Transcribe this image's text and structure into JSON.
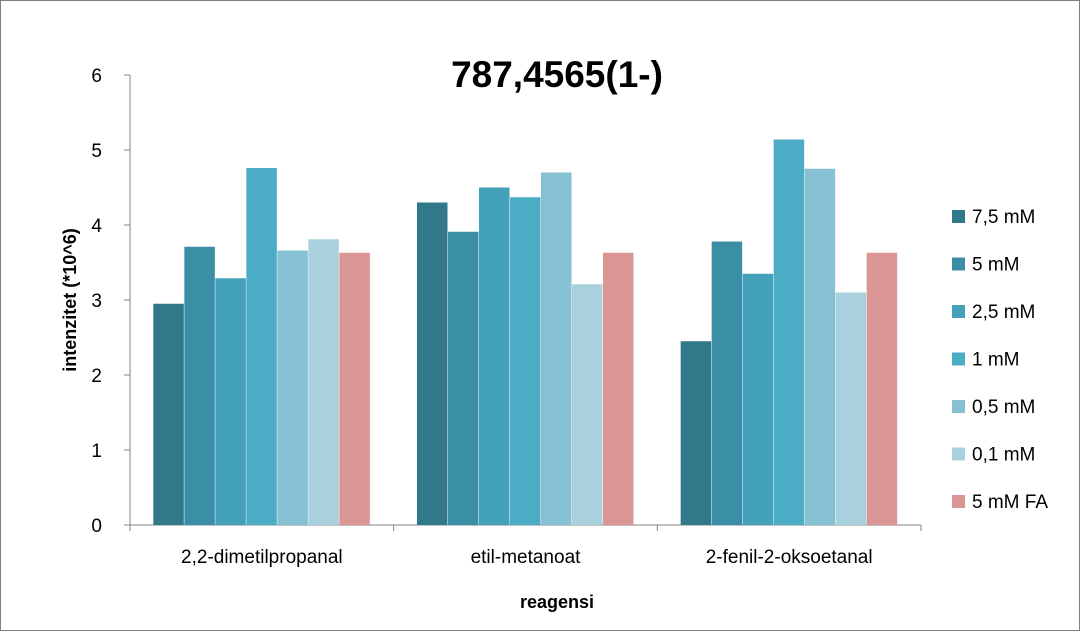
{
  "chart_data": {
    "type": "bar",
    "title": "787,4565(1-)",
    "xlabel": "reagensi",
    "ylabel": "intenzitet (*10^6)",
    "ylim": [
      0,
      6
    ],
    "yticks": [
      "0",
      "1",
      "2",
      "3",
      "4",
      "5",
      "6"
    ],
    "grid": false,
    "legend_position": "right",
    "categories": [
      "2,2-dimetilpropanal",
      "etil-metanoat",
      "2-fenil-2-oksoetanal"
    ],
    "series": [
      {
        "name": "7,5 mM",
        "color": "#31798a",
        "values": [
          2.95,
          4.3,
          2.45
        ]
      },
      {
        "name": "5 mM",
        "color": "#3a8ea5",
        "values": [
          3.71,
          3.91,
          3.78
        ]
      },
      {
        "name": "2,5 mM",
        "color": "#43a1ba",
        "values": [
          3.29,
          4.5,
          3.35
        ]
      },
      {
        "name": "1 mM",
        "color": "#4bacc6",
        "values": [
          4.76,
          4.37,
          5.14
        ]
      },
      {
        "name": "0,5 mM",
        "color": "#86c0d3",
        "values": [
          3.66,
          4.7,
          4.75
        ]
      },
      {
        "name": "0,1 mM",
        "color": "#a9d0dd",
        "values": [
          3.81,
          3.21,
          3.1
        ]
      },
      {
        "name": "5 mM FA",
        "color": "#d99694",
        "values": [
          3.63,
          3.63,
          3.63
        ]
      }
    ]
  }
}
